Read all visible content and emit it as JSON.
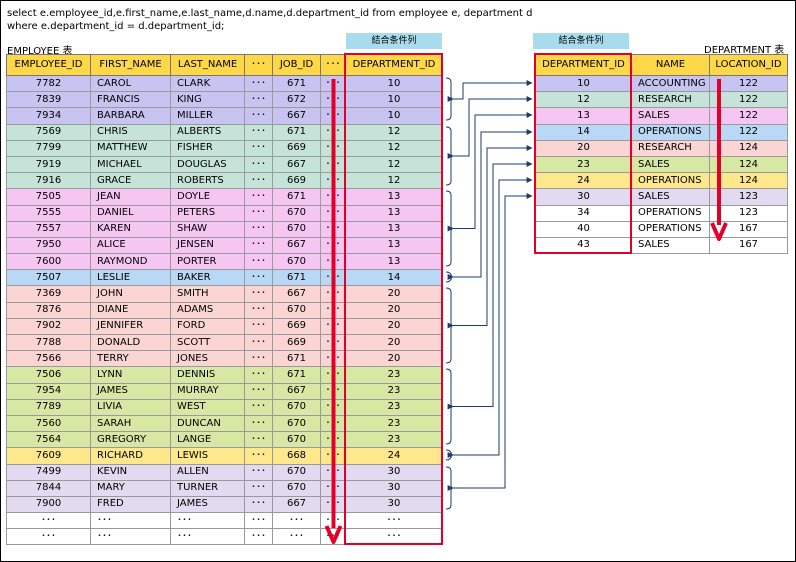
{
  "sql": {
    "line1": "select e.employee_id,e.first_name,e.last_name,d.name,d.department_id from employee e, department d",
    "line2": "where e.department_id = d.department_id;"
  },
  "employee": {
    "caption": "EMPLOYEE 表",
    "join_header": "結合条件列",
    "headers": [
      "EMPLOYEE_ID",
      "FIRST_NAME",
      "LAST_NAME",
      "･･･",
      "JOB_ID",
      "･･･",
      "DEPARTMENT_ID"
    ],
    "rows": [
      [
        "7782",
        "CAROL",
        "CLARK",
        "･･･",
        "671",
        "･･･",
        "10"
      ],
      [
        "7839",
        "FRANCIS",
        "KING",
        "･･･",
        "672",
        "･･･",
        "10"
      ],
      [
        "7934",
        "BARBARA",
        "MILLER",
        "･･･",
        "667",
        "･･･",
        "10"
      ],
      [
        "7569",
        "CHRIS",
        "ALBERTS",
        "･･･",
        "671",
        "･･･",
        "12"
      ],
      [
        "7799",
        "MATTHEW",
        "FISHER",
        "･･･",
        "669",
        "･･･",
        "12"
      ],
      [
        "7919",
        "MICHAEL",
        "DOUGLAS",
        "･･･",
        "667",
        "･･･",
        "12"
      ],
      [
        "7916",
        "GRACE",
        "ROBERTS",
        "･･･",
        "669",
        "･･･",
        "12"
      ],
      [
        "7505",
        "JEAN",
        "DOYLE",
        "･･･",
        "671",
        "･･･",
        "13"
      ],
      [
        "7555",
        "DANIEL",
        "PETERS",
        "･･･",
        "670",
        "･･･",
        "13"
      ],
      [
        "7557",
        "KAREN",
        "SHAW",
        "･･･",
        "670",
        "･･･",
        "13"
      ],
      [
        "7950",
        "ALICE",
        "JENSEN",
        "･･･",
        "667",
        "･･･",
        "13"
      ],
      [
        "7600",
        "RAYMOND",
        "PORTER",
        "･･･",
        "670",
        "･･･",
        "13"
      ],
      [
        "7507",
        "LESLIE",
        "BAKER",
        "･･･",
        "671",
        "･･･",
        "14"
      ],
      [
        "7369",
        "JOHN",
        "SMITH",
        "･･･",
        "667",
        "･･･",
        "20"
      ],
      [
        "7876",
        "DIANE",
        "ADAMS",
        "･･･",
        "670",
        "･･･",
        "20"
      ],
      [
        "7902",
        "JENNIFER",
        "FORD",
        "･･･",
        "669",
        "･･･",
        "20"
      ],
      [
        "7788",
        "DONALD",
        "SCOTT",
        "･･･",
        "669",
        "･･･",
        "20"
      ],
      [
        "7566",
        "TERRY",
        "JONES",
        "･･･",
        "671",
        "･･･",
        "20"
      ],
      [
        "7506",
        "LYNN",
        "DENNIS",
        "･･･",
        "671",
        "･･･",
        "23"
      ],
      [
        "7954",
        "JAMES",
        "MURRAY",
        "･･･",
        "667",
        "･･･",
        "23"
      ],
      [
        "7789",
        "LIVIA",
        "WEST",
        "･･･",
        "670",
        "･･･",
        "23"
      ],
      [
        "7560",
        "SARAH",
        "DUNCAN",
        "･･･",
        "670",
        "･･･",
        "23"
      ],
      [
        "7564",
        "GREGORY",
        "LANGE",
        "･･･",
        "670",
        "･･･",
        "23"
      ],
      [
        "7609",
        "RICHARD",
        "LEWIS",
        "･･･",
        "668",
        "･･･",
        "24"
      ],
      [
        "7499",
        "KEVIN",
        "ALLEN",
        "･･･",
        "670",
        "･･･",
        "30"
      ],
      [
        "7844",
        "MARY",
        "TURNER",
        "･･･",
        "670",
        "･･･",
        "30"
      ],
      [
        "7900",
        "FRED",
        "JAMES",
        "･･･",
        "667",
        "･･･",
        "30"
      ],
      [
        "･･･",
        "･･･",
        "･･･",
        "･･･",
        "･･･",
        "･･･",
        "･･･"
      ],
      [
        "･･･",
        "･･･",
        "･･･",
        "･･･",
        "･･･",
        "･･･",
        "･･･"
      ]
    ]
  },
  "department": {
    "caption": "DEPARTMENT 表",
    "join_header": "結合条件列",
    "headers": [
      "DEPARTMENT_ID",
      "NAME",
      "LOCATION_ID"
    ],
    "rows": [
      [
        "10",
        "ACCOUNTING",
        "122"
      ],
      [
        "12",
        "RESEARCH",
        "122"
      ],
      [
        "13",
        "SALES",
        "122"
      ],
      [
        "14",
        "OPERATIONS",
        "122"
      ],
      [
        "20",
        "RESEARCH",
        "124"
      ],
      [
        "23",
        "SALES",
        "124"
      ],
      [
        "24",
        "OPERATIONS",
        "124"
      ],
      [
        "30",
        "SALES",
        "123"
      ],
      [
        "34",
        "OPERATIONS",
        "123"
      ],
      [
        "40",
        "OPERATIONS",
        "167"
      ],
      [
        "43",
        "SALES",
        "167"
      ]
    ]
  },
  "colors": {
    "10": "#c8c4f2",
    "12": "#c6e3da",
    "13": "#f6c6f2",
    "14": "#b8d8f6",
    "20": "#fbd4d4",
    "23": "#d6e8a4",
    "24": "#ffe78e",
    "30": "#e2daf0",
    "none": "#ffffff",
    "header": "#ffd84a",
    "join_header": "#a8dcec",
    "highlight": "#e0002a",
    "arrow": "#e0002a",
    "connector": "#1f3b6a"
  }
}
